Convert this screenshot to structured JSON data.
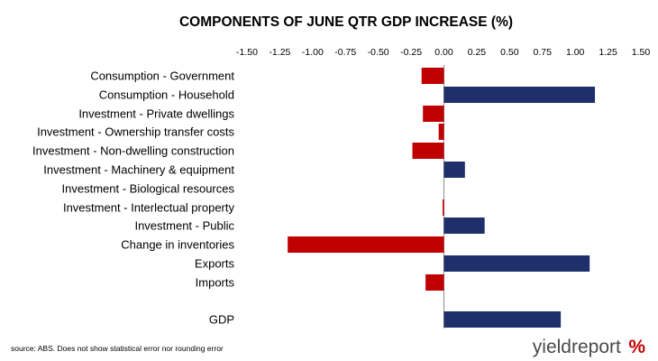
{
  "colors": {
    "positive": "#1f2f6b",
    "negative": "#c00000",
    "axis": "#8c8c8c"
  },
  "chart_data": {
    "type": "bar",
    "orientation": "horizontal",
    "title": "COMPONENTS OF JUNE QTR GDP INCREASE (%)",
    "xlim": [
      -1.5,
      1.5
    ],
    "xticks": [
      "-1.50",
      "-1.25",
      "-1.00",
      "-0.75",
      "-0.50",
      "-0.25",
      "0.00",
      "0.25",
      "0.50",
      "0.75",
      "1.00",
      "1.25",
      "1.50"
    ],
    "x_axis_position": "top",
    "grid": false,
    "categories": [
      "Consumption - Government",
      "Consumption - Household",
      "Investment - Private dwellings",
      "Investment - Ownership transfer costs",
      "Investment - Non-dwelling construction",
      "Investment - Machinery & equipment",
      "Investment - Biological resources",
      "Investment - Interlectual property",
      "Investment - Public",
      "Change in inventories",
      "Exports",
      "Imports",
      "GDP"
    ],
    "values": [
      -0.17,
      1.15,
      -0.16,
      -0.04,
      -0.24,
      0.16,
      0.0,
      -0.01,
      0.31,
      -1.19,
      1.11,
      -0.14,
      0.89
    ]
  },
  "source_note": "source: ABS. Does not show statistical error nor rounding error",
  "logo": {
    "word": "yieldreport",
    "symbol": "%"
  }
}
